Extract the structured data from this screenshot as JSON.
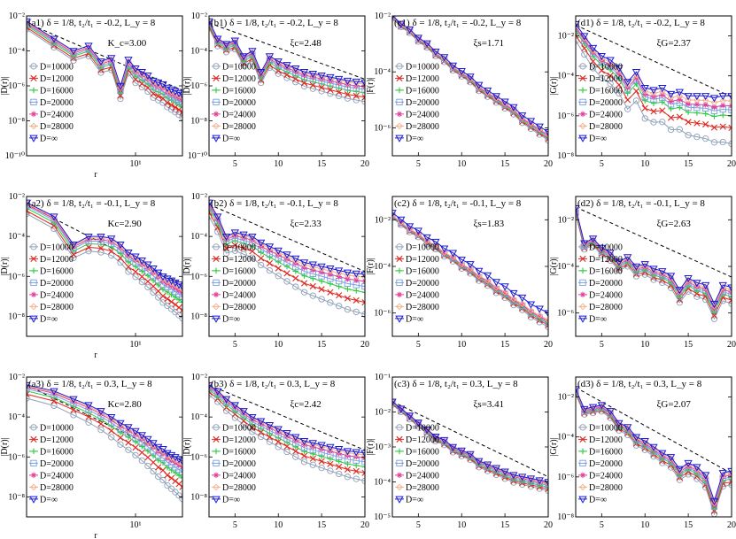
{
  "figure": {
    "legend_entries": [
      "D=10000",
      "D=12000",
      "D=16000",
      "D=20000",
      "D=24000",
      "D=28000",
      "D=∞"
    ],
    "series_colors": [
      "#8ea0b8",
      "#e0261f",
      "#2ecc40",
      "#7b9fe0",
      "#e0409a",
      "#f4b08a",
      "#1a1ad8"
    ],
    "fit_line_style": "dashed black"
  },
  "chart_data": [
    {
      "id": "a1",
      "type": "line",
      "title": "(a1) δ = 1/8, t₂/t₁ = -0.2, L_y = 8",
      "ylabel": "|D(r)|",
      "xlabel": "r",
      "xscale": "log",
      "yscale": "log",
      "xlim": [
        2,
        20
      ],
      "ylim": [
        1e-10,
        0.01
      ],
      "xticks": [
        10
      ],
      "xticklabels": [
        "10¹"
      ],
      "yticks": [
        1e-10,
        1e-08,
        1e-06,
        0.0001,
        0.01
      ],
      "yticklabels": [
        "10⁻¹⁰",
        "10⁻⁸",
        "10⁻⁶",
        "10⁻⁴",
        "10⁻²"
      ],
      "annotation": "K_c=3.00",
      "fit": {
        "r": [
          2,
          20
        ],
        "y": [
          0.004,
          5.6e-07
        ]
      },
      "x": [
        2,
        3,
        4,
        5,
        6,
        7,
        8,
        9,
        10,
        11,
        12,
        13,
        14,
        15,
        16,
        17,
        18,
        19,
        20
      ],
      "base": [
        -2.3,
        -3.3,
        -4.0,
        -3.7,
        -4.6,
        -4.4,
        -6.0,
        -4.5,
        -5.0,
        -5.2,
        -5.4,
        -5.7,
        -5.8,
        -5.9,
        -6.1,
        -6.2,
        -6.3,
        -6.4,
        -6.5
      ],
      "offsets": [
        -1.3,
        -1.0,
        -0.7,
        -0.5,
        -0.3,
        -0.15,
        0
      ]
    },
    {
      "id": "b1",
      "type": "line",
      "title": "(b1) δ = 1/8, t₂/t₁ = -0.2, L_y = 8",
      "ylabel": "|D(r)|",
      "xlabel": "",
      "xscale": "linear",
      "yscale": "log",
      "xlim": [
        2,
        20
      ],
      "ylim": [
        1e-10,
        0.01
      ],
      "xticks": [
        5,
        10,
        15,
        20
      ],
      "xticklabels": [
        "5",
        "10",
        "15",
        "20"
      ],
      "yticks": [
        1e-10,
        1e-08,
        1e-06,
        0.0001,
        0.01
      ],
      "yticklabels": [
        "10⁻¹⁰",
        "10⁻⁸",
        "10⁻⁶",
        "10⁻⁴",
        "10⁻²"
      ],
      "annotation": "ξc=2.48",
      "fit": {
        "r": [
          2,
          20
        ],
        "y": [
          0.004,
          2.4e-06
        ]
      },
      "x": [
        2,
        3,
        4,
        5,
        6,
        7,
        8,
        9,
        10,
        11,
        12,
        13,
        14,
        15,
        16,
        17,
        18,
        19,
        20
      ],
      "base": [
        -2.3,
        -3.3,
        -3.6,
        -3.4,
        -4.3,
        -4.0,
        -5.2,
        -4.3,
        -4.6,
        -4.8,
        -5.0,
        -5.2,
        -5.3,
        -5.4,
        -5.5,
        -5.6,
        -5.7,
        -5.75,
        -5.8
      ],
      "offsets": [
        -1.1,
        -0.85,
        -0.6,
        -0.4,
        -0.25,
        -0.1,
        0
      ]
    },
    {
      "id": "c1",
      "type": "line",
      "title": "(c1) δ = 1/8, t₂/t₁ = -0.2, L_y = 8",
      "ylabel": "|F(r)|",
      "xlabel": "",
      "xscale": "linear",
      "yscale": "log",
      "xlim": [
        2,
        20
      ],
      "ylim": [
        1e-07,
        0.01
      ],
      "xticks": [
        5,
        10,
        15,
        20
      ],
      "xticklabels": [
        "5",
        "10",
        "15",
        "20"
      ],
      "yticks": [
        1e-06,
        0.0001,
        0.01
      ],
      "yticklabels": [
        "10⁻⁶",
        "10⁻⁴",
        "10⁻²"
      ],
      "annotation": "ξs=1.71",
      "fit": null,
      "x": [
        2,
        3,
        4,
        5,
        6,
        7,
        8,
        9,
        10,
        11,
        12,
        13,
        14,
        15,
        16,
        17,
        18,
        19,
        20
      ],
      "base": [
        -2.0,
        -2.3,
        -2.5,
        -2.8,
        -3.0,
        -3.3,
        -3.5,
        -3.8,
        -4.0,
        -4.2,
        -4.5,
        -4.7,
        -4.9,
        -5.1,
        -5.3,
        -5.6,
        -5.8,
        -6.0,
        -6.2
      ],
      "offsets": [
        -0.25,
        -0.2,
        -0.15,
        -0.1,
        -0.08,
        -0.04,
        0.05
      ]
    },
    {
      "id": "d1",
      "type": "line",
      "title": "(d1) δ = 1/8, t₂/t₁ = -0.2, L_y = 8",
      "ylabel": "|G(r)|",
      "xlabel": "",
      "xscale": "linear",
      "yscale": "log",
      "xlim": [
        2,
        20
      ],
      "ylim": [
        1e-08,
        0.1
      ],
      "xticks": [
        5,
        10,
        15,
        20
      ],
      "xticklabels": [
        "5",
        "10",
        "15",
        "20"
      ],
      "yticks": [
        1e-08,
        1e-06,
        0.0001,
        0.01
      ],
      "yticklabels": [
        "10⁻⁸",
        "10⁻⁶",
        "10⁻⁴",
        "10⁻²"
      ],
      "annotation": "ξG=2.37",
      "fit": {
        "r": [
          2,
          20
        ],
        "y": [
          0.035,
          8.9e-06
        ]
      },
      "x": [
        2,
        3,
        4,
        5,
        6,
        7,
        8,
        9,
        10,
        11,
        12,
        13,
        14,
        15,
        16,
        17,
        18,
        19,
        20
      ],
      "base": [
        -1.4,
        -2.0,
        -2.6,
        -3.0,
        -3.2,
        -3.6,
        -4.3,
        -3.8,
        -4.6,
        -4.7,
        -4.6,
        -4.9,
        -4.8,
        -5.0,
        -5.0,
        -5.0,
        -5.1,
        -5.0,
        -5.0
      ],
      "offsets": [
        -2.4,
        -1.6,
        -1.0,
        -0.7,
        -0.5,
        -0.25,
        0
      ]
    },
    {
      "id": "a2",
      "type": "line",
      "title": "(a2) δ = 1/8, t₂/t₁ = -0.1, L_y = 8",
      "ylabel": "|D(r)|",
      "xlabel": "r",
      "xscale": "log",
      "yscale": "log",
      "xlim": [
        2,
        20
      ],
      "ylim": [
        1e-09,
        0.01
      ],
      "xticks": [
        10
      ],
      "xticklabels": [
        "10¹"
      ],
      "yticks": [
        1e-08,
        1e-06,
        0.0001,
        0.01
      ],
      "yticklabels": [
        "10⁻⁸",
        "10⁻⁶",
        "10⁻⁴",
        "10⁻²"
      ],
      "annotation": "Kc=2.90",
      "fit": {
        "r": [
          2,
          20
        ],
        "y": [
          0.004,
          4e-07
        ]
      },
      "x": [
        2,
        3,
        4,
        5,
        6,
        7,
        8,
        9,
        10,
        11,
        12,
        13,
        14,
        15,
        16,
        17,
        18,
        19,
        20
      ],
      "base": [
        -2.3,
        -3.0,
        -4.4,
        -4.0,
        -4.0,
        -4.1,
        -4.4,
        -4.8,
        -5.0,
        -5.2,
        -5.4,
        -5.6,
        -5.8,
        -6.0,
        -6.1,
        -6.2,
        -6.3,
        -6.4,
        -6.5
      ],
      "offsets": [
        -1.6,
        -1.2,
        -0.8,
        -0.5,
        -0.3,
        -0.15,
        0
      ]
    },
    {
      "id": "b2",
      "type": "line",
      "title": "(b2) δ = 1/8, t₂/t₁ = -0.1, L_y = 8",
      "ylabel": "|D(r)|",
      "xlabel": "",
      "xscale": "linear",
      "yscale": "log",
      "xlim": [
        2,
        20
      ],
      "ylim": [
        1e-09,
        0.01
      ],
      "xticks": [
        5,
        10,
        15,
        20
      ],
      "xticklabels": [
        "5",
        "10",
        "15",
        "20"
      ],
      "yticks": [
        1e-08,
        1e-06,
        0.0001,
        0.01
      ],
      "yticklabels": [
        "10⁻⁸",
        "10⁻⁶",
        "10⁻⁴",
        "10⁻²"
      ],
      "annotation": "ξc=2.33",
      "fit": {
        "r": [
          2,
          20
        ],
        "y": [
          0.004,
          1.75e-06
        ]
      },
      "x": [
        2,
        3,
        4,
        5,
        6,
        7,
        8,
        9,
        10,
        11,
        12,
        13,
        14,
        15,
        16,
        17,
        18,
        19,
        20
      ],
      "base": [
        -2.3,
        -3.0,
        -4.0,
        -3.8,
        -3.9,
        -4.0,
        -4.3,
        -4.5,
        -4.7,
        -4.9,
        -5.1,
        -5.3,
        -5.4,
        -5.5,
        -5.6,
        -5.7,
        -5.8,
        -5.85,
        -5.9
      ],
      "offsets": [
        -2.0,
        -1.4,
        -0.9,
        -0.6,
        -0.35,
        -0.15,
        0
      ]
    },
    {
      "id": "c2",
      "type": "line",
      "title": "(c2) δ = 1/8, t₂/t₁ = -0.1, L_y = 8",
      "ylabel": "|F(r)|",
      "xlabel": "",
      "xscale": "linear",
      "yscale": "log",
      "xlim": [
        2,
        20
      ],
      "ylim": [
        1e-07,
        0.1
      ],
      "xticks": [
        5,
        10,
        15,
        20
      ],
      "xticklabels": [
        "5",
        "10",
        "15",
        "20"
      ],
      "yticks": [
        1e-06,
        0.0001,
        0.01
      ],
      "yticklabels": [
        "10⁻⁶",
        "10⁻⁴",
        "10⁻²"
      ],
      "annotation": "ξs=1.83",
      "fit": null,
      "x": [
        2,
        3,
        4,
        5,
        6,
        7,
        8,
        9,
        10,
        11,
        12,
        13,
        14,
        15,
        16,
        17,
        18,
        19,
        20
      ],
      "base": [
        -1.8,
        -2.1,
        -2.4,
        -2.6,
        -2.9,
        -3.1,
        -3.4,
        -3.6,
        -3.9,
        -4.1,
        -4.4,
        -4.6,
        -4.9,
        -5.1,
        -5.4,
        -5.6,
        -5.9,
        -6.1,
        -6.3
      ],
      "offsets": [
        -0.3,
        -0.22,
        -0.15,
        -0.1,
        -0.05,
        0.0,
        0.3
      ]
    },
    {
      "id": "d2",
      "type": "line",
      "title": "(d2) δ = 1/8, t₂/t₁ = -0.1, L_y = 8",
      "ylabel": "|G(r)|",
      "xlabel": "",
      "xscale": "linear",
      "yscale": "log",
      "xlim": [
        2,
        20
      ],
      "ylim": [
        1e-07,
        0.1
      ],
      "xticks": [
        5,
        10,
        15,
        20
      ],
      "xticklabels": [
        "5",
        "10",
        "15",
        "20"
      ],
      "yticks": [
        1e-06,
        0.0001,
        0.01
      ],
      "yticklabels": [
        "10⁻⁶",
        "10⁻⁴",
        "10⁻²"
      ],
      "annotation": "ξG=2.63",
      "fit": {
        "r": [
          2,
          20
        ],
        "y": [
          0.035,
          3.5e-05
        ]
      },
      "x": [
        2,
        3,
        4,
        5,
        6,
        7,
        8,
        9,
        10,
        11,
        12,
        13,
        14,
        15,
        16,
        17,
        18,
        19,
        20
      ],
      "base": [
        -1.5,
        -3.0,
        -2.8,
        -3.2,
        -3.4,
        -3.8,
        -3.6,
        -4.0,
        -3.9,
        -4.1,
        -4.2,
        -4.4,
        -5.0,
        -4.5,
        -4.7,
        -4.8,
        -5.6,
        -4.8,
        -4.9
      ],
      "offsets": [
        -0.7,
        -0.55,
        -0.4,
        -0.3,
        -0.2,
        -0.1,
        0
      ]
    },
    {
      "id": "a3",
      "type": "line",
      "title": "(a3) δ = 1/8, t₂/t₁ = 0.3, L_y = 8",
      "ylabel": "|D(r)|",
      "xlabel": "r",
      "xscale": "log",
      "yscale": "log",
      "xlim": [
        2,
        20
      ],
      "ylim": [
        1e-09,
        0.01
      ],
      "xticks": [
        10
      ],
      "xticklabels": [
        "10¹"
      ],
      "yticks": [
        1e-08,
        1e-06,
        0.0001,
        0.01
      ],
      "yticklabels": [
        "10⁻⁸",
        "10⁻⁶",
        "10⁻⁴",
        "10⁻²"
      ],
      "annotation": "Kc=2.80",
      "fit": {
        "r": [
          2,
          20
        ],
        "y": [
          0.004,
          6e-07
        ]
      },
      "x": [
        2,
        3,
        4,
        5,
        6,
        7,
        8,
        9,
        10,
        11,
        12,
        13,
        14,
        15,
        16,
        17,
        18,
        19,
        20
      ],
      "base": [
        -2.4,
        -2.7,
        -3.1,
        -3.4,
        -3.7,
        -4.0,
        -4.3,
        -4.5,
        -4.7,
        -4.9,
        -5.1,
        -5.3,
        -5.5,
        -5.6,
        -5.8,
        -5.9,
        -6.0,
        -6.1,
        -6.2
      ],
      "offsets": [
        -1.9,
        -1.3,
        -0.85,
        -0.55,
        -0.3,
        -0.15,
        0
      ]
    },
    {
      "id": "b3",
      "type": "line",
      "title": "(b3) δ = 1/8, t₂/t₁ = 0.3, L_y = 8",
      "ylabel": "|D(r)|",
      "xlabel": "",
      "xscale": "linear",
      "yscale": "log",
      "xlim": [
        2,
        20
      ],
      "ylim": [
        1e-09,
        0.01
      ],
      "xticks": [
        5,
        10,
        15,
        20
      ],
      "xticklabels": [
        "5",
        "10",
        "15",
        "20"
      ],
      "yticks": [
        1e-08,
        1e-06,
        0.0001,
        0.01
      ],
      "yticklabels": [
        "10⁻⁸",
        "10⁻⁶",
        "10⁻⁴",
        "10⁻²"
      ],
      "annotation": "ξc=2.42",
      "fit": {
        "r": [
          2,
          20
        ],
        "y": [
          0.004,
          2.2e-06
        ]
      },
      "x": [
        2,
        3,
        4,
        5,
        6,
        7,
        8,
        9,
        10,
        11,
        12,
        13,
        14,
        15,
        16,
        17,
        18,
        19,
        20
      ],
      "base": [
        -2.4,
        -2.7,
        -3.1,
        -3.4,
        -3.7,
        -4.0,
        -4.2,
        -4.4,
        -4.6,
        -4.8,
        -5.0,
        -5.2,
        -5.3,
        -5.4,
        -5.5,
        -5.6,
        -5.7,
        -5.75,
        -5.8
      ],
      "offsets": [
        -1.4,
        -1.0,
        -0.7,
        -0.45,
        -0.25,
        -0.1,
        0
      ]
    },
    {
      "id": "c3",
      "type": "line",
      "title": "(c3) δ = 1/8, t₂/t₁ = 0.3, L_y = 8",
      "ylabel": "|F(r)|",
      "xlabel": "",
      "xscale": "linear",
      "yscale": "log",
      "xlim": [
        2,
        20
      ],
      "ylim": [
        1e-05,
        0.1
      ],
      "xticks": [
        5,
        10,
        15,
        20
      ],
      "xticklabels": [
        "5",
        "10",
        "15",
        "20"
      ],
      "yticks": [
        1e-05,
        0.0001,
        0.001,
        0.01,
        0.1
      ],
      "yticklabels": [
        "10⁻⁵",
        "10⁻⁴",
        "10⁻³",
        "10⁻²",
        "10⁻¹"
      ],
      "annotation": "ξs=3.41",
      "fit": {
        "r": [
          2,
          20
        ],
        "y": [
          0.02,
          0.00014
        ]
      },
      "x": [
        2,
        3,
        4,
        5,
        6,
        7,
        8,
        9,
        10,
        11,
        12,
        13,
        14,
        15,
        16,
        17,
        18,
        19,
        20
      ],
      "base": [
        -1.7,
        -1.9,
        -2.1,
        -2.3,
        -2.5,
        -2.7,
        -2.8,
        -3.0,
        -3.1,
        -3.2,
        -3.4,
        -3.5,
        -3.6,
        -3.7,
        -3.8,
        -3.85,
        -3.9,
        -3.95,
        -4.0
      ],
      "offsets": [
        -0.25,
        -0.2,
        -0.15,
        -0.1,
        -0.06,
        -0.03,
        0
      ]
    },
    {
      "id": "d3",
      "type": "line",
      "title": "(d3) δ = 1/8, t₂/t₁ = 0.3, L_y = 8",
      "ylabel": "|G(r)|",
      "xlabel": "",
      "xscale": "linear",
      "yscale": "log",
      "xlim": [
        2,
        20
      ],
      "ylim": [
        1e-08,
        0.1
      ],
      "xticks": [
        5,
        10,
        15,
        20
      ],
      "xticklabels": [
        "5",
        "10",
        "15",
        "20"
      ],
      "yticks": [
        1e-08,
        1e-06,
        0.0001,
        0.01
      ],
      "yticklabels": [
        "10⁻⁸",
        "10⁻⁶",
        "10⁻⁴",
        "10⁻²"
      ],
      "annotation": "ξG=2.07",
      "fit": {
        "r": [
          2,
          20
        ],
        "y": [
          0.03,
          1.5e-06
        ]
      },
      "x": [
        2,
        3,
        4,
        5,
        6,
        7,
        8,
        9,
        10,
        11,
        12,
        13,
        14,
        15,
        16,
        17,
        18,
        19,
        20
      ],
      "base": [
        -1.6,
        -2.6,
        -2.5,
        -2.4,
        -2.7,
        -3.3,
        -3.5,
        -4.0,
        -4.2,
        -4.5,
        -4.8,
        -5.0,
        -5.6,
        -5.3,
        -5.5,
        -5.9,
        -7.2,
        -5.8,
        -5.7
      ],
      "offsets": [
        -0.7,
        -0.55,
        -0.4,
        -0.3,
        -0.2,
        -0.1,
        0
      ]
    }
  ]
}
